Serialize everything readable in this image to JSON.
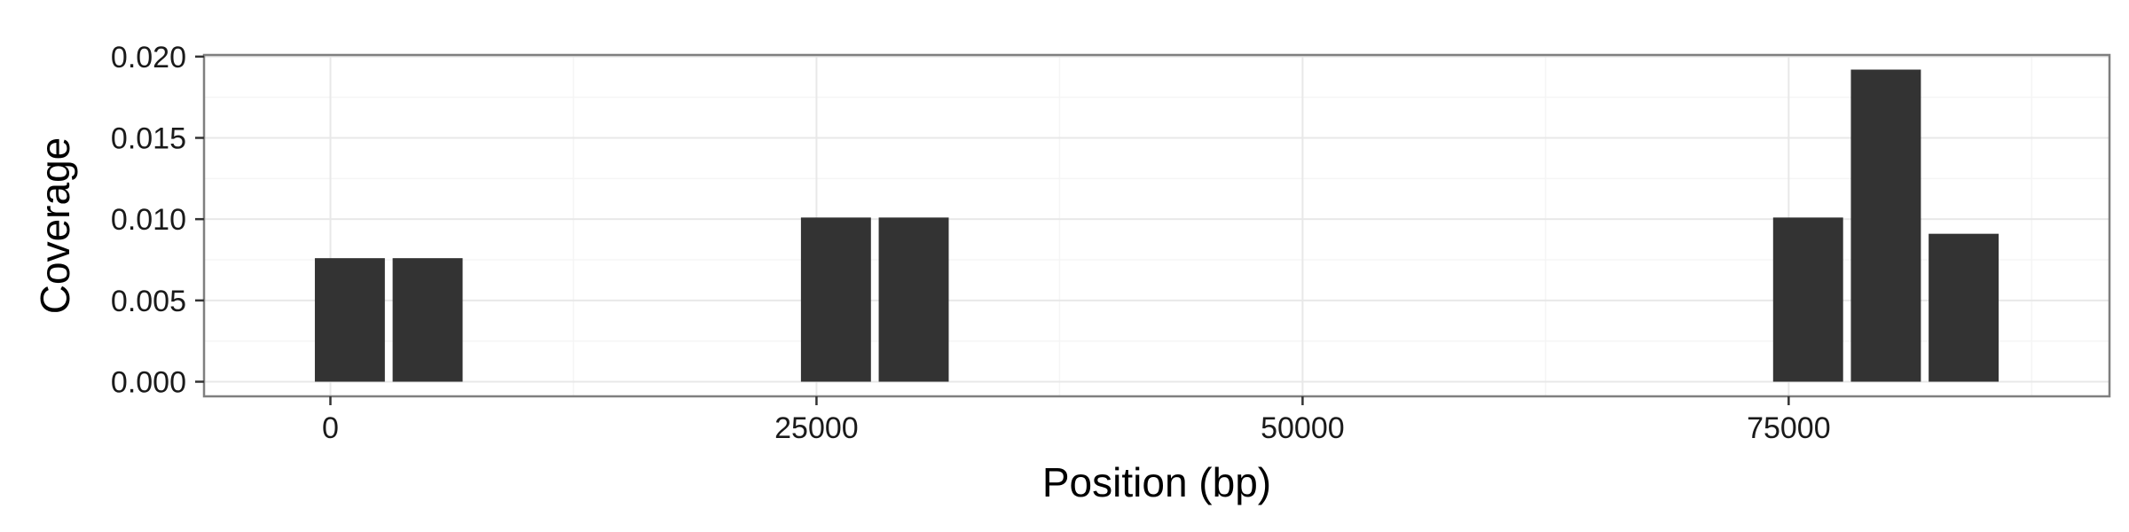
{
  "chart_data": {
    "type": "bar",
    "title": "",
    "xlabel": "Position (bp)",
    "ylabel": "Coverage",
    "x": [
      1000,
      5000,
      26000,
      30000,
      76000,
      80000,
      84000
    ],
    "values": [
      0.0076,
      0.0076,
      0.0101,
      0.0101,
      0.0101,
      0.0192,
      0.0091
    ],
    "bin_width": 3600,
    "xlim": [
      -6500,
      91500
    ],
    "ylim": [
      -0.0009,
      0.0201
    ],
    "xticks": [
      0,
      25000,
      50000,
      75000
    ],
    "xtick_labels": [
      "0",
      "25000",
      "50000",
      "75000"
    ],
    "yticks": [
      0,
      0.005,
      0.01,
      0.015,
      0.02
    ],
    "ytick_labels": [
      "0.000",
      "0.005",
      "0.010",
      "0.015",
      "0.020"
    ],
    "grid": true,
    "legend": "none",
    "colors": {
      "bar": "#333333",
      "panel_border": "#7f7f7f",
      "grid_major": "#e8e8e8",
      "grid_minor": "#f5f5f5",
      "background": "#ffffff"
    }
  }
}
